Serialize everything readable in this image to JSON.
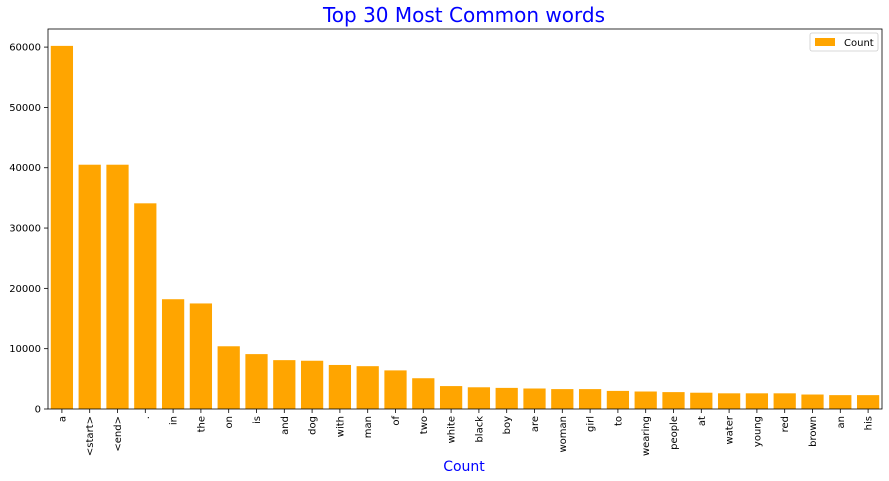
{
  "chart_data": {
    "type": "bar",
    "title": "Top 30 Most Common words",
    "xlabel": "Count",
    "ylabel": "",
    "categories": [
      "a",
      "<start>",
      "<end>",
      ".",
      "in",
      "the",
      "on",
      "is",
      "and",
      "dog",
      "with",
      "man",
      "of",
      "two",
      "white",
      "black",
      "boy",
      "are",
      "woman",
      "girl",
      "to",
      "wearing",
      "people",
      "at",
      "water",
      "young",
      "red",
      "brown",
      "an",
      "his"
    ],
    "series": [
      {
        "name": "Count",
        "values": [
          60200,
          40500,
          40500,
          34100,
          18200,
          17500,
          10400,
          9100,
          8100,
          8000,
          7300,
          7100,
          6400,
          5100,
          3800,
          3600,
          3500,
          3400,
          3300,
          3300,
          3000,
          2900,
          2800,
          2700,
          2600,
          2600,
          2600,
          2400,
          2300,
          2300
        ]
      }
    ],
    "ylim": [
      0,
      63000
    ],
    "yticks": [
      0,
      10000,
      20000,
      30000,
      40000,
      50000,
      60000
    ],
    "legend_position": "top-right",
    "grid": false,
    "colors": {
      "bar": "#FFA500",
      "title": "#0000FF",
      "xlabel": "#0000FF"
    }
  }
}
